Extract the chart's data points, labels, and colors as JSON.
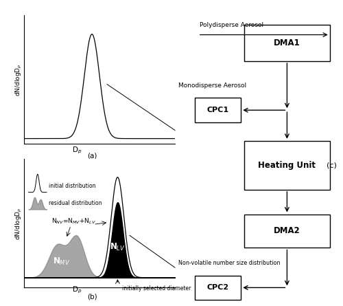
{
  "bg_color": "#ffffff",
  "panel_a_label": "(a)",
  "panel_b_label": "(b)",
  "panel_c_label": "(c)",
  "label_initial": "initial distribution",
  "label_residual": "residual distribution",
  "label_initially": "initially selected diameter",
  "label_monodisperse": "Monodisperse Aerosol",
  "label_polydisperse": "Polydisperse Aerosol",
  "label_nonvolatile": "Non-volatile number size distribution",
  "box_DMA1": "DMA1",
  "box_CPC1": "CPC1",
  "box_heating": "Heating Unit",
  "box_DMA2": "DMA2",
  "box_CPC2": "CPC2"
}
